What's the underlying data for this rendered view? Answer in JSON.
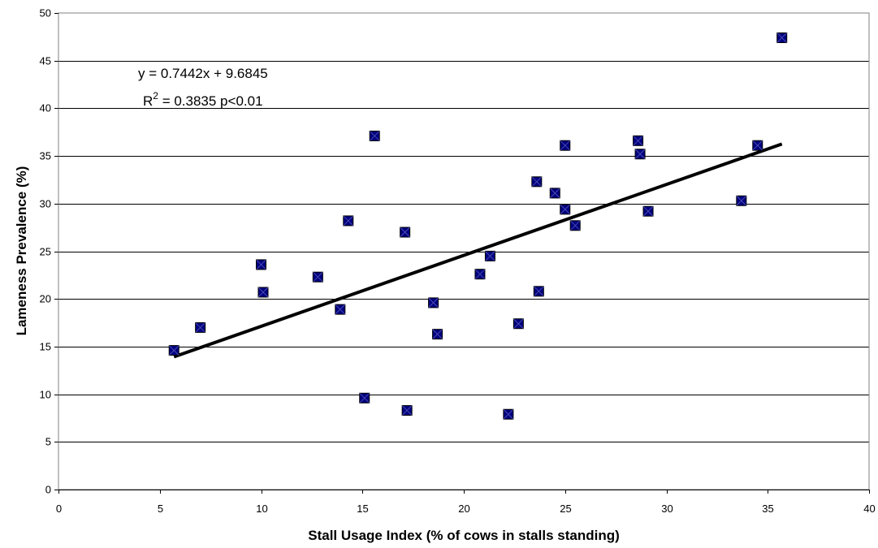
{
  "chart_data": {
    "type": "scatter",
    "title": "",
    "xlabel": "Stall Usage Index (% of cows in stalls standing)",
    "ylabel": "Lameness Prevalence (%)",
    "xlim": [
      0,
      40
    ],
    "ylim": [
      0,
      50
    ],
    "xticks": [
      0,
      5,
      10,
      15,
      20,
      25,
      30,
      35,
      40
    ],
    "yticks": [
      0,
      5,
      10,
      15,
      20,
      25,
      30,
      35,
      40,
      45,
      50
    ],
    "grid": "horizontal",
    "legend": "none",
    "marker_color": "#000080",
    "series": [
      {
        "x": [
          5.7,
          7.0,
          10.0,
          10.1,
          12.8,
          13.9,
          14.3,
          15.1,
          15.6,
          17.1,
          17.2,
          18.5,
          18.7,
          20.8,
          21.3,
          22.2,
          22.7,
          23.6,
          23.7,
          24.5,
          25.0,
          25.0,
          25.5,
          28.6,
          28.7,
          29.1,
          33.7,
          34.5,
          35.7
        ],
        "y": [
          14.6,
          17.0,
          23.6,
          20.7,
          22.3,
          18.9,
          28.2,
          9.6,
          37.1,
          27.0,
          8.3,
          19.6,
          16.3,
          22.6,
          24.5,
          7.9,
          17.4,
          32.3,
          20.8,
          31.1,
          36.1,
          29.4,
          27.7,
          36.6,
          35.2,
          29.2,
          30.3,
          36.1,
          47.4
        ]
      }
    ],
    "trendline": {
      "slope": 0.7442,
      "intercept": 9.6845,
      "x_range": [
        5.7,
        35.7
      ],
      "color": "#000000"
    },
    "annotations": {
      "equation": "y = 0.7442x + 9.6845",
      "r2_prefix": "R",
      "r2_sup": "2",
      "r2_rest": " = 0.3835 p<0.01"
    }
  }
}
